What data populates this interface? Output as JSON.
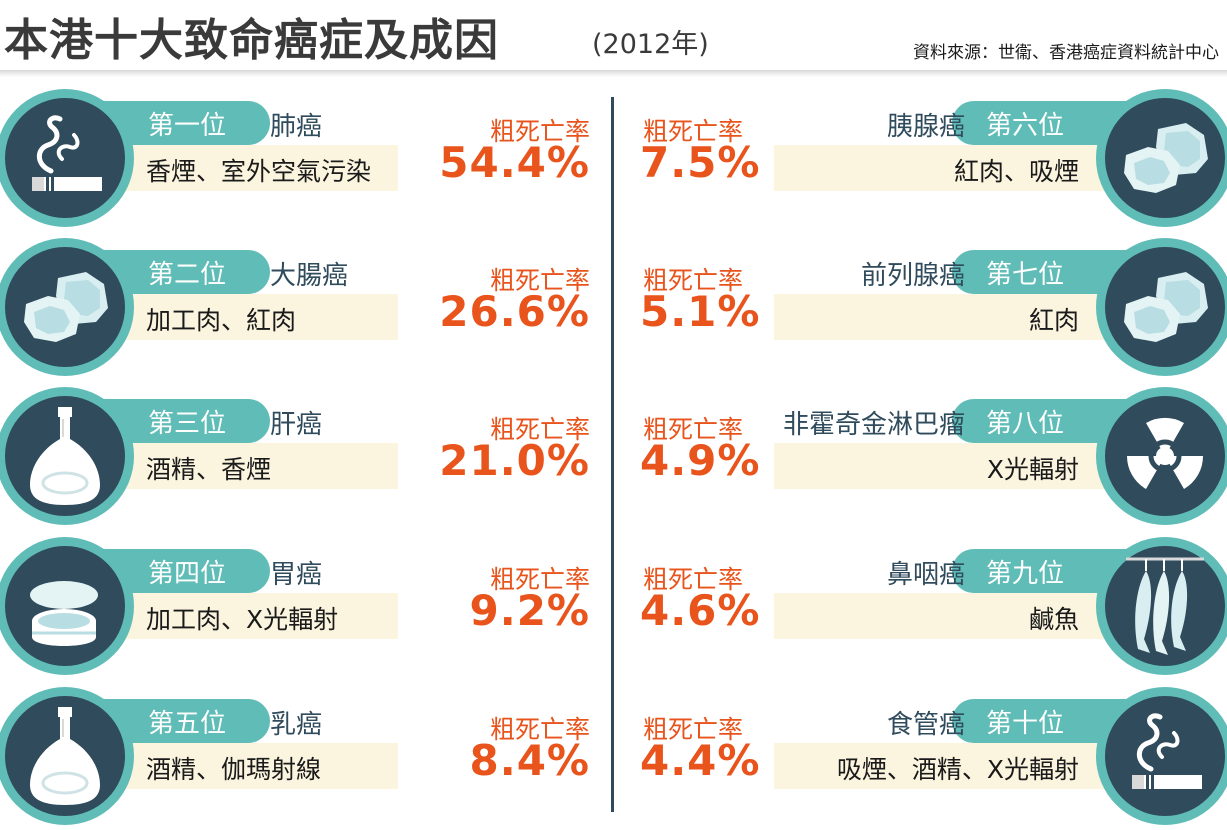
{
  "header": {
    "title": "本港十大致命癌症及成因",
    "year": "(2012年)",
    "source": "資料來源：世衞、香港癌症資料統計中心"
  },
  "colors": {
    "teal": "#5fbcb6",
    "navy": "#2f4b5c",
    "cream": "#fbf4df",
    "orange": "#e8541c"
  },
  "items": [
    {
      "rank": "第一位",
      "cancer": "肺癌",
      "causes": "香煙、室外空氣污染",
      "rate_label": "粗死亡率",
      "rate": "54.4%",
      "icon": "cigarette-icon"
    },
    {
      "rank": "第二位",
      "cancer": "大腸癌",
      "causes": "加工肉、紅肉",
      "rate_label": "粗死亡率",
      "rate": "26.6%",
      "icon": "meat-icon"
    },
    {
      "rank": "第三位",
      "cancer": "肝癌",
      "causes": "酒精、香煙",
      "rate_label": "粗死亡率",
      "rate": "21.0%",
      "icon": "liquor-bottle-icon"
    },
    {
      "rank": "第四位",
      "cancer": "胃癌",
      "causes": "加工肉、X光輻射",
      "rate_label": "粗死亡率",
      "rate": "9.2%",
      "icon": "canned-food-icon"
    },
    {
      "rank": "第五位",
      "cancer": "乳癌",
      "causes": "酒精、伽瑪射線",
      "rate_label": "粗死亡率",
      "rate": "8.4%",
      "icon": "liquor-bottle-icon"
    },
    {
      "rank": "第六位",
      "cancer": "胰腺癌",
      "causes": "紅肉、吸煙",
      "rate_label": "粗死亡率",
      "rate": "7.5%",
      "icon": "meat-icon"
    },
    {
      "rank": "第七位",
      "cancer": "前列腺癌",
      "causes": "紅肉",
      "rate_label": "粗死亡率",
      "rate": "5.1%",
      "icon": "meat-icon"
    },
    {
      "rank": "第八位",
      "cancer": "非霍奇金淋巴瘤",
      "causes": "X光輻射",
      "rate_label": "粗死亡率",
      "rate": "4.9%",
      "icon": "radiation-icon"
    },
    {
      "rank": "第九位",
      "cancer": "鼻咽癌",
      "causes": "鹹魚",
      "rate_label": "粗死亡率",
      "rate": "4.6%",
      "icon": "salted-fish-icon"
    },
    {
      "rank": "第十位",
      "cancer": "食管癌",
      "causes": "吸煙、酒精、X光輻射",
      "rate_label": "粗死亡率",
      "rate": "4.4%",
      "icon": "cigarette-icon"
    }
  ]
}
